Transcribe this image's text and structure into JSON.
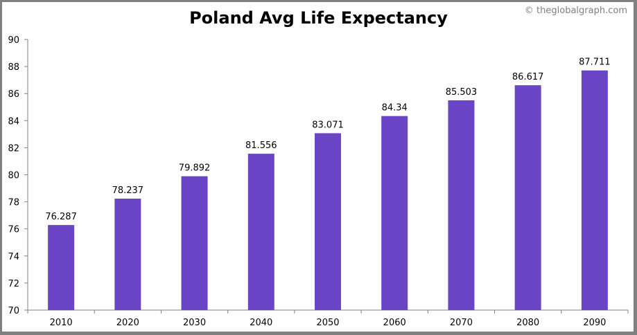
{
  "chart_data": {
    "type": "bar",
    "title": "Poland Avg Life Expectancy",
    "watermark": "© theglobalgraph.com",
    "categories": [
      "2010",
      "2020",
      "2030",
      "2040",
      "2050",
      "2060",
      "2070",
      "2080",
      "2090"
    ],
    "values": [
      76.287,
      78.237,
      79.892,
      81.556,
      83.071,
      84.34,
      85.503,
      86.617,
      87.711
    ],
    "value_labels": [
      "76.287",
      "78.237",
      "79.892",
      "81.556",
      "83.071",
      "84.34",
      "85.503",
      "86.617",
      "87.711"
    ],
    "xlabel": "",
    "ylabel": "",
    "ylim": [
      70,
      90
    ],
    "yticks": [
      "70",
      "72",
      "74",
      "76",
      "78",
      "80",
      "82",
      "84",
      "86",
      "88",
      "90"
    ],
    "grid": false,
    "legend": "none",
    "bar_color": "#6a46c6"
  }
}
